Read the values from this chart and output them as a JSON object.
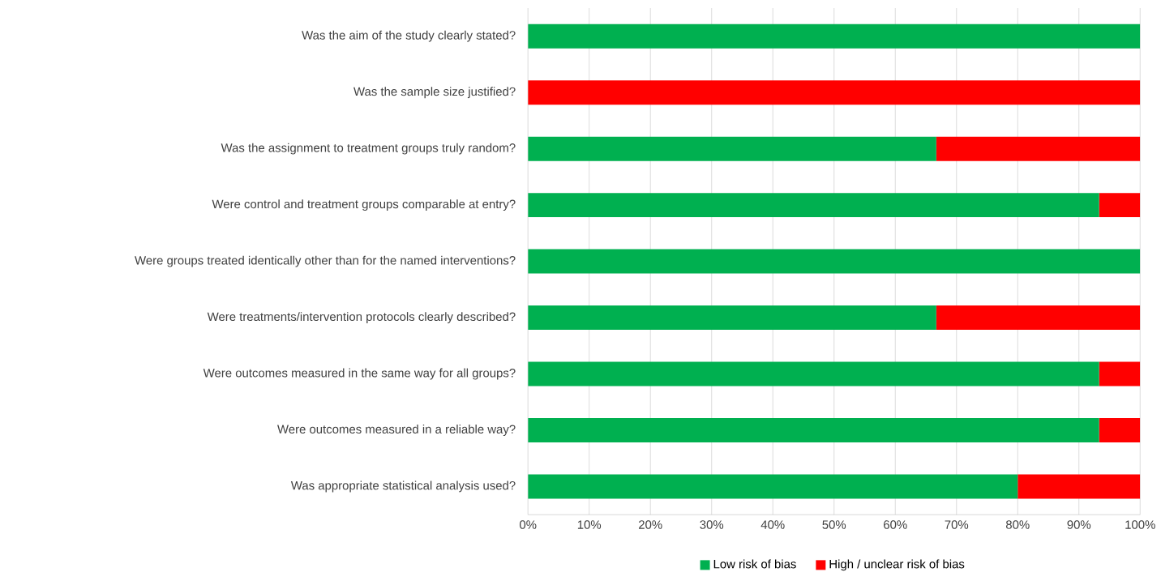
{
  "chart_data": {
    "type": "bar",
    "orientation": "horizontal",
    "stacked": true,
    "categories": [
      "Was the aim of the study clearly stated?",
      "Was the sample size justified?",
      "Was the assignment to treatment groups truly random?",
      "Were control and treatment groups comparable at entry?",
      "Were groups treated identically other than for the named interventions?",
      "Were treatments/intervention protocols clearly described?",
      "Were outcomes measured in the same way for all groups?",
      "Were outcomes measured in a reliable way?",
      "Was appropriate statistical analysis used?"
    ],
    "series": [
      {
        "name": "Low risk of bias",
        "color": "#00b050",
        "values": [
          100,
          0,
          66.7,
          93.3,
          100,
          66.7,
          93.3,
          93.3,
          80
        ]
      },
      {
        "name": "High / unclear risk of bias",
        "color": "#ff0000",
        "values": [
          0,
          100,
          33.3,
          6.7,
          0,
          33.3,
          6.7,
          6.7,
          20
        ]
      }
    ],
    "xlim": [
      0,
      100
    ],
    "xticks": [
      {
        "value": 0,
        "label": "0%"
      },
      {
        "value": 10,
        "label": "10%"
      },
      {
        "value": 20,
        "label": "20%"
      },
      {
        "value": 30,
        "label": "30%"
      },
      {
        "value": 40,
        "label": "40%"
      },
      {
        "value": 50,
        "label": "50%"
      },
      {
        "value": 60,
        "label": "60%"
      },
      {
        "value": 70,
        "label": "70%"
      },
      {
        "value": 80,
        "label": "80%"
      },
      {
        "value": 90,
        "label": "90%"
      },
      {
        "value": 100,
        "label": "100%"
      }
    ],
    "grid": "x",
    "legend": "bottom"
  }
}
